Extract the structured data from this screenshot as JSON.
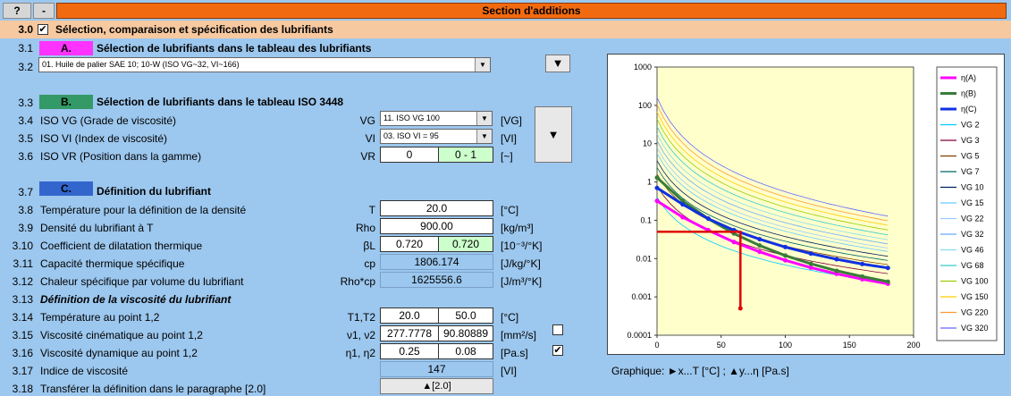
{
  "top": {
    "help_label": "?",
    "minus_label": "-",
    "title": "Section d'additions"
  },
  "header": {
    "num": "3.0",
    "checked": "✔",
    "title": "Sélection, comparaison et spécification des lubrifiants"
  },
  "secA": {
    "num": "3.1",
    "box": "A.",
    "title": "Sélection de lubrifiants dans le tableau des lubrifiants"
  },
  "row32": {
    "num": "3.2",
    "combo": "01. Huile de palier SAE 10; 10-W (ISO VG~32, VI~166)",
    "btn": "▼"
  },
  "secB": {
    "num": "3.3",
    "box": "B.",
    "title": "Sélection de lubrifiants dans le tableau ISO 3448"
  },
  "row34": {
    "num": "3.4",
    "label": "ISO VG (Grade de viscosité)",
    "sym": "VG",
    "combo": "11. ISO VG 100",
    "unit": "[VG]"
  },
  "row35": {
    "num": "3.5",
    "label": "ISO VI (Index de viscosité)",
    "sym": "VI",
    "combo": "03. ISO VI = 95",
    "unit": "[VI]"
  },
  "row36": {
    "num": "3.6",
    "label": "ISO VR (Position dans la gamme)",
    "sym": "VR",
    "v1": "0",
    "v2": "0 - 1",
    "unit": "[~]"
  },
  "bigbtn": "▼",
  "secC": {
    "num": "3.7",
    "box": "C.",
    "title": "Définition du lubrifiant"
  },
  "row38": {
    "num": "3.8",
    "label": "Température pour la définition de la densité",
    "sym": "T",
    "v1": "20.0",
    "unit": "[°C]"
  },
  "row39": {
    "num": "3.9",
    "label": "Densité du lubrifiant à T",
    "sym": "Rho",
    "v1": "900.00",
    "unit": "[kg/m³]"
  },
  "row310": {
    "num": "3.10",
    "label": "Coefficient de dilatation thermique",
    "sym": "βL",
    "v1": "0.720",
    "v2": "0.720",
    "unit": "[10⁻³/°K]"
  },
  "row311": {
    "num": "3.11",
    "label": "Capacité thermique spécifique",
    "sym": "cp",
    "v1": "1806.174",
    "unit": "[J/kg/°K]"
  },
  "row312": {
    "num": "3.12",
    "label": "Chaleur spécifique par volume du lubrifiant",
    "sym": "Rho*cp",
    "v1": "1625556.6",
    "unit": "[J/m³/°K]"
  },
  "row313": {
    "num": "3.13",
    "label": "Définition de la viscosité du lubrifiant"
  },
  "row314": {
    "num": "3.14",
    "label": "Température au point 1,2",
    "sym": "T1,T2",
    "v1": "20.0",
    "v2": "50.0",
    "unit": "[°C]"
  },
  "row315": {
    "num": "3.15",
    "label": "Viscosité cinématique au point 1,2",
    "sym": "ν1, ν2",
    "v1": "277.7778",
    "v2": "90.80889",
    "unit": "[mm²/s]"
  },
  "row316": {
    "num": "3.16",
    "label": "Viscosité dynamique au point 1,2",
    "sym": "η1, η2",
    "v1": "0.25",
    "v2": "0.08",
    "unit": "[Pa.s]",
    "check": "✔"
  },
  "row317": {
    "num": "3.17",
    "label": "Indice de viscosité",
    "v1": "147",
    "unit": "[VI]"
  },
  "row318": {
    "num": "3.18",
    "label": "Transférer la définition dans le paragraphe [2.0]",
    "btn": "▲[2.0]"
  },
  "graph_caption": "Graphique:  ►x...T [°C] ;   ▲y...η [Pa.s]",
  "chart_data": {
    "type": "line",
    "xlim": [
      0,
      200
    ],
    "ylim": [
      0.0001,
      1000
    ],
    "yscale": "log",
    "xticks": [
      "0",
      "50",
      "100",
      "150",
      "200"
    ],
    "yticks": [
      "1000",
      "100",
      "10",
      "1",
      "0.1",
      "0.01",
      "0.001",
      "0.0001"
    ],
    "grid": false,
    "legend_position": "right",
    "series": [
      {
        "name": "η(A)",
        "color": "#ff00ff",
        "bold": true,
        "x": [
          0,
          20,
          40,
          60,
          80,
          100,
          120,
          140,
          160,
          180
        ],
        "y": [
          0.32,
          0.12,
          0.055,
          0.027,
          0.015,
          0.009,
          0.0058,
          0.004,
          0.0029,
          0.0022
        ]
      },
      {
        "name": "η(B)",
        "color": "#3a7d3a",
        "bold": true,
        "x": [
          0,
          20,
          40,
          60,
          80,
          100,
          120,
          140,
          160,
          180
        ],
        "y": [
          1.3,
          0.32,
          0.11,
          0.045,
          0.022,
          0.012,
          0.0073,
          0.0048,
          0.0034,
          0.0025
        ]
      },
      {
        "name": "η(C)",
        "color": "#1030e0",
        "bold": true,
        "x": [
          0,
          20,
          40,
          60,
          80,
          100,
          120,
          140,
          160,
          180
        ],
        "y": [
          0.7,
          0.26,
          0.11,
          0.055,
          0.032,
          0.02,
          0.0135,
          0.0096,
          0.0072,
          0.0057
        ]
      }
    ],
    "vg_series": [
      {
        "name": "VG 2",
        "color": "#00ccff"
      },
      {
        "name": "VG 3",
        "color": "#800040"
      },
      {
        "name": "VG 5",
        "color": "#804000"
      },
      {
        "name": "VG 7",
        "color": "#006666"
      },
      {
        "name": "VG 10",
        "color": "#002060"
      },
      {
        "name": "VG 15",
        "color": "#66ccff"
      },
      {
        "name": "VG 22",
        "color": "#99ccff"
      },
      {
        "name": "VG 32",
        "color": "#66aaff"
      },
      {
        "name": "VG 46",
        "color": "#88ddee"
      },
      {
        "name": "VG 68",
        "color": "#33cccc"
      },
      {
        "name": "VG 100",
        "color": "#99cc00"
      },
      {
        "name": "VG 150",
        "color": "#ffcc00"
      },
      {
        "name": "VG 220",
        "color": "#ff9933"
      },
      {
        "name": "VG 320",
        "color": "#6666ff"
      }
    ],
    "marker_line": {
      "color": "#e00000",
      "x": [
        0,
        65,
        65
      ],
      "y": [
        0.05,
        0.05,
        0.0005
      ]
    }
  }
}
